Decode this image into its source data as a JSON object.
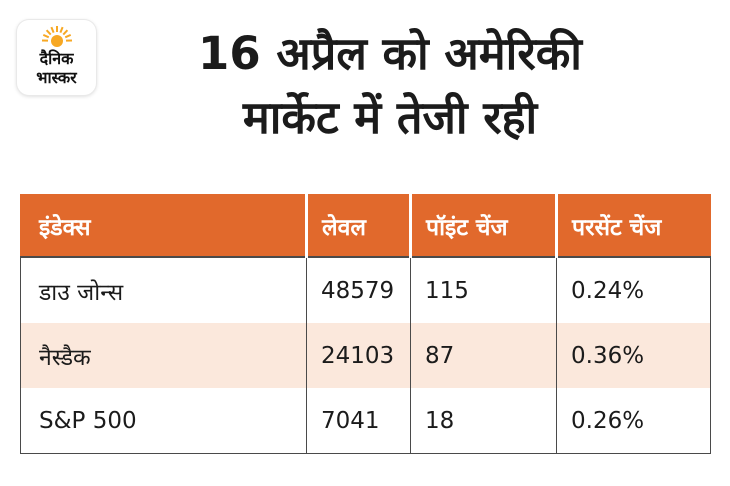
{
  "logo": {
    "line1": "दैनिक",
    "line2": "भास्कर",
    "sun_color": "#f7a823",
    "icon": "sun-icon"
  },
  "title": {
    "line1": "16 अप्रैल को अमेरिकी",
    "line2": "मार्केट में तेजी रही"
  },
  "table": {
    "headers": [
      "इंडेक्स",
      "लेवल",
      "पॉइंट चेंज",
      "परसेंट चेंज"
    ],
    "rows": [
      [
        "डाउ जोन्स",
        "48579",
        "115",
        "0.24%"
      ],
      [
        "नैस्डैक",
        "24103",
        "87",
        "0.36%"
      ],
      [
        "S&P 500",
        "7041",
        "18",
        "0.26%"
      ]
    ]
  },
  "colors": {
    "header_bg": "#e1692c",
    "row_tint": "#fbe8dc",
    "text": "#1b1b1b"
  }
}
